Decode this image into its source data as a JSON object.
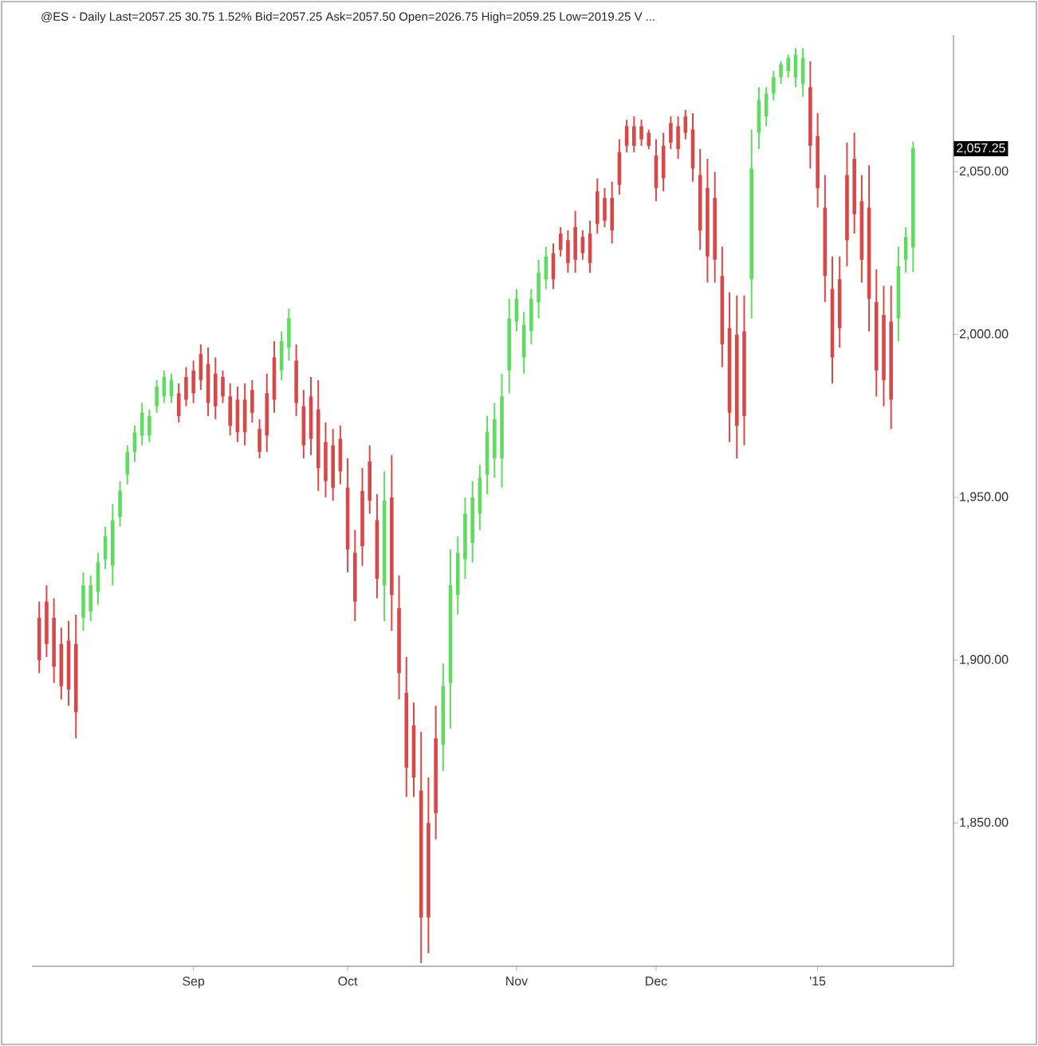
{
  "chart_data": {
    "type": "candlestick",
    "title": "@ES - Daily Last=2057.25 30.75 1.52% Bid=2057.25 Ask=2057.50 Open=2026.75 High=2059.25 Low=2019.25 V ...",
    "categories": [
      null,
      null,
      null,
      null,
      null,
      null,
      null,
      null,
      null,
      null,
      null,
      null,
      null,
      null,
      null,
      null,
      null,
      null,
      null,
      null,
      null,
      "Sep",
      null,
      null,
      null,
      null,
      null,
      null,
      null,
      null,
      null,
      null,
      null,
      null,
      null,
      null,
      null,
      null,
      null,
      null,
      null,
      null,
      "Oct",
      null,
      null,
      null,
      null,
      null,
      null,
      null,
      null,
      null,
      null,
      null,
      null,
      null,
      null,
      null,
      null,
      null,
      null,
      null,
      null,
      null,
      null,
      "Nov",
      null,
      null,
      null,
      null,
      null,
      null,
      null,
      null,
      null,
      null,
      null,
      null,
      null,
      null,
      null,
      null,
      null,
      null,
      "Dec",
      null,
      null,
      null,
      null,
      null,
      null,
      null,
      null,
      null,
      null,
      null,
      null,
      null,
      null,
      null,
      null,
      null,
      null,
      null,
      null,
      null,
      "'15",
      null,
      null,
      null,
      null,
      null,
      null,
      null,
      null,
      null,
      null,
      null,
      null,
      null
    ],
    "ohlc": [
      [
        1913,
        1918,
        1896,
        1900
      ],
      [
        1918,
        1923,
        1901,
        1905
      ],
      [
        1913,
        1919,
        1893,
        1898
      ],
      [
        1905,
        1910,
        1888,
        1892
      ],
      [
        1906,
        1912,
        1886,
        1891
      ],
      [
        1905,
        1914,
        1876,
        1884
      ],
      [
        1913,
        1927,
        1909,
        1923
      ],
      [
        1915,
        1926,
        1912,
        1923
      ],
      [
        1921,
        1933,
        1917,
        1930
      ],
      [
        1931,
        1941,
        1928,
        1938
      ],
      [
        1929,
        1948,
        1923,
        1943
      ],
      [
        1944,
        1955,
        1941,
        1952
      ],
      [
        1957,
        1966,
        1954,
        1964
      ],
      [
        1964,
        1972,
        1961,
        1970
      ],
      [
        1969,
        1979,
        1966,
        1976
      ],
      [
        1969,
        1977,
        1967,
        1975
      ],
      [
        1978,
        1986,
        1976,
        1984
      ],
      [
        1981,
        1989,
        1979,
        1987
      ],
      [
        1981,
        1988,
        1979,
        1986
      ],
      [
        1982,
        1985,
        1973,
        1975
      ],
      [
        1987,
        1990,
        1978,
        1980
      ],
      [
        1989,
        1992,
        1979,
        1982
      ],
      [
        1994,
        1997,
        1983,
        1986
      ],
      [
        1991,
        1996,
        1975,
        1979
      ],
      [
        1988,
        1993,
        1974,
        1978
      ],
      [
        1987,
        1989,
        1979,
        1981
      ],
      [
        1981,
        1985,
        1969,
        1972
      ],
      [
        1980,
        1984,
        1967,
        1970
      ],
      [
        1980,
        1985,
        1966,
        1970
      ],
      [
        1983,
        1986,
        1973,
        1976
      ],
      [
        1971,
        1974,
        1962,
        1964
      ],
      [
        1982,
        1988,
        1964,
        1969
      ],
      [
        1993,
        1998,
        1976,
        1980
      ],
      [
        1989,
        2001,
        1986,
        1998
      ],
      [
        1996,
        2008,
        1992,
        2005
      ],
      [
        1992,
        1997,
        1975,
        1979
      ],
      [
        1978,
        1983,
        1962,
        1966
      ],
      [
        1981,
        1987,
        1963,
        1968
      ],
      [
        1977,
        1986,
        1952,
        1959
      ],
      [
        1967,
        1973,
        1950,
        1955
      ],
      [
        1966,
        1971,
        1949,
        1953
      ],
      [
        1968,
        1972,
        1954,
        1958
      ],
      [
        1953,
        1962,
        1927,
        1934
      ],
      [
        1933,
        1940,
        1912,
        1918
      ],
      [
        1952,
        1959,
        1929,
        1935
      ],
      [
        1961,
        1966,
        1945,
        1949
      ],
      [
        1943,
        1951,
        1919,
        1925
      ],
      [
        1923,
        1958,
        1912,
        1949
      ],
      [
        1950,
        1963,
        1909,
        1920
      ],
      [
        1916,
        1926,
        1888,
        1896
      ],
      [
        1890,
        1901,
        1858,
        1867
      ],
      [
        1880,
        1887,
        1858,
        1864
      ],
      [
        1860,
        1878,
        1807,
        1821
      ],
      [
        1850,
        1864,
        1810,
        1821
      ],
      [
        1876,
        1886,
        1845,
        1853
      ],
      [
        1874,
        1899,
        1866,
        1892
      ],
      [
        1893,
        1934,
        1879,
        1923
      ],
      [
        1920,
        1938,
        1914,
        1933
      ],
      [
        1931,
        1950,
        1925,
        1945
      ],
      [
        1936,
        1955,
        1930,
        1950
      ],
      [
        1945,
        1960,
        1940,
        1956
      ],
      [
        1957,
        1975,
        1951,
        1970
      ],
      [
        1962,
        1979,
        1956,
        1974
      ],
      [
        1962,
        1988,
        1953,
        1981
      ],
      [
        1989,
        2011,
        1982,
        2005
      ],
      [
        2004,
        2014,
        2001,
        2011
      ],
      [
        1993,
        2007,
        1988,
        2003
      ],
      [
        2001,
        2014,
        1997,
        2011
      ],
      [
        2010,
        2023,
        2005,
        2019
      ],
      [
        2017,
        2027,
        2014,
        2024
      ],
      [
        2025,
        2028,
        2014,
        2017
      ],
      [
        2031,
        2033,
        2024,
        2026
      ],
      [
        2029,
        2032,
        2019,
        2022
      ],
      [
        2033,
        2038,
        2019,
        2023
      ],
      [
        2030,
        2032,
        2023,
        2025
      ],
      [
        2031,
        2035,
        2019,
        2022
      ],
      [
        2044,
        2048,
        2031,
        2034
      ],
      [
        2042,
        2045,
        2033,
        2035
      ],
      [
        2042,
        2047,
        2028,
        2032
      ],
      [
        2056,
        2060,
        2043,
        2046
      ],
      [
        2064,
        2066,
        2056,
        2058
      ],
      [
        2064,
        2067,
        2056,
        2058
      ],
      [
        2064,
        2066,
        2058,
        2060
      ],
      [
        2062,
        2063,
        2057,
        2058
      ],
      [
        2055,
        2060,
        2041,
        2045
      ],
      [
        2058,
        2062,
        2044,
        2048
      ],
      [
        2065,
        2067,
        2057,
        2059
      ],
      [
        2064,
        2067,
        2054,
        2057
      ],
      [
        2067,
        2069,
        2060,
        2062
      ],
      [
        2063,
        2068,
        2047,
        2051
      ],
      [
        2049,
        2057,
        2026,
        2032
      ],
      [
        2045,
        2054,
        2016,
        2024
      ],
      [
        2042,
        2050,
        2016,
        2023
      ],
      [
        2018,
        2027,
        1990,
        1997
      ],
      [
        2002,
        2013,
        1967,
        1976
      ],
      [
        2000,
        2012,
        1962,
        1972
      ],
      [
        2001,
        2012,
        1966,
        1975
      ],
      [
        2017,
        2063,
        2005,
        2051
      ],
      [
        2062,
        2076,
        2057,
        2072
      ],
      [
        2067,
        2076,
        2064,
        2074
      ],
      [
        2074,
        2081,
        2072,
        2079
      ],
      [
        2079,
        2084,
        2077,
        2083
      ],
      [
        2081,
        2086,
        2079,
        2085
      ],
      [
        2079,
        2088,
        2076,
        2086
      ],
      [
        2077,
        2088,
        2073,
        2085
      ],
      [
        2076,
        2084,
        2051,
        2058
      ],
      [
        2061,
        2068,
        2039,
        2045
      ],
      [
        2039,
        2049,
        2010,
        2018
      ],
      [
        2014,
        2024,
        1985,
        1993
      ],
      [
        2017,
        2024,
        1996,
        2002
      ],
      [
        2049,
        2059,
        2021,
        2029
      ],
      [
        2054,
        2062,
        2031,
        2037
      ],
      [
        2041,
        2049,
        2016,
        2023
      ],
      [
        2039,
        2052,
        2001,
        2011
      ],
      [
        2010,
        2020,
        1981,
        1989
      ],
      [
        2006,
        2015,
        1978,
        1986
      ],
      [
        2004,
        2015,
        1971,
        1980
      ],
      [
        2005,
        2027,
        1998,
        2021
      ],
      [
        2023,
        2033,
        2019,
        2030
      ],
      [
        2026.75,
        2059.25,
        2019.25,
        2057.25
      ]
    ],
    "colors": [
      "#d94848",
      "#d94848",
      "#d94848",
      "#d94848",
      "#d94848",
      "#d94848",
      "#5fdc5f",
      "#5fdc5f",
      "#5fdc5f",
      "#5fdc5f",
      "#5fdc5f",
      "#5fdc5f",
      "#5fdc5f",
      "#5fdc5f",
      "#5fdc5f",
      "#5fdc5f",
      "#5fdc5f",
      "#5fdc5f",
      "#5fdc5f",
      "#d94848",
      "#d94848",
      "#d94848",
      "#d94848",
      "#d94848",
      "#d94848",
      "#d94848",
      "#d94848",
      "#d94848",
      "#d94848",
      "#d94848",
      "#d94848",
      "#d94848",
      "#d94848",
      "#5fdc5f",
      "#5fdc5f",
      "#d94848",
      "#d94848",
      "#d94848",
      "#d94848",
      "#d94848",
      "#d94848",
      "#d94848",
      "#d94848",
      "#d94848",
      "#d94848",
      "#d94848",
      "#d94848",
      "#5fdc5f",
      "#d94848",
      "#d94848",
      "#d94848",
      "#d94848",
      "#d94848",
      "#d94848",
      "#d94848",
      "#5fdc5f",
      "#5fdc5f",
      "#5fdc5f",
      "#5fdc5f",
      "#5fdc5f",
      "#5fdc5f",
      "#5fdc5f",
      "#5fdc5f",
      "#5fdc5f",
      "#5fdc5f",
      "#5fdc5f",
      "#5fdc5f",
      "#5fdc5f",
      "#5fdc5f",
      "#5fdc5f",
      "#d94848",
      "#d94848",
      "#d94848",
      "#d94848",
      "#d94848",
      "#d94848",
      "#d94848",
      "#d94848",
      "#d94848",
      "#d94848",
      "#d94848",
      "#d94848",
      "#d94848",
      "#d94848",
      "#d94848",
      "#d94848",
      "#d94848",
      "#d94848",
      "#d94848",
      "#d94848",
      "#d94848",
      "#d94848",
      "#d94848",
      "#d94848",
      "#d94848",
      "#d94848",
      "#d94848",
      "#5fdc5f",
      "#5fdc5f",
      "#5fdc5f",
      "#5fdc5f",
      "#5fdc5f",
      "#5fdc5f",
      "#5fdc5f",
      "#5fdc5f",
      "#d94848",
      "#d94848",
      "#d94848",
      "#d94848",
      "#d94848",
      "#d94848",
      "#d94848",
      "#d94848",
      "#d94848",
      "#d94848",
      "#d94848",
      "#d94848",
      "#5fdc5f",
      "#5fdc5f",
      "#5fdc5f"
    ],
    "ylim": [
      1806,
      2092
    ],
    "yticks": [
      {
        "value": 1850,
        "label": "1,850.00"
      },
      {
        "value": 1900,
        "label": "1,900.00"
      },
      {
        "value": 1950,
        "label": "1,950.00"
      },
      {
        "value": 2000,
        "label": "2,000.00"
      },
      {
        "value": 2050,
        "label": "2,050.00"
      }
    ],
    "annotations": [
      "2,057.25"
    ]
  }
}
